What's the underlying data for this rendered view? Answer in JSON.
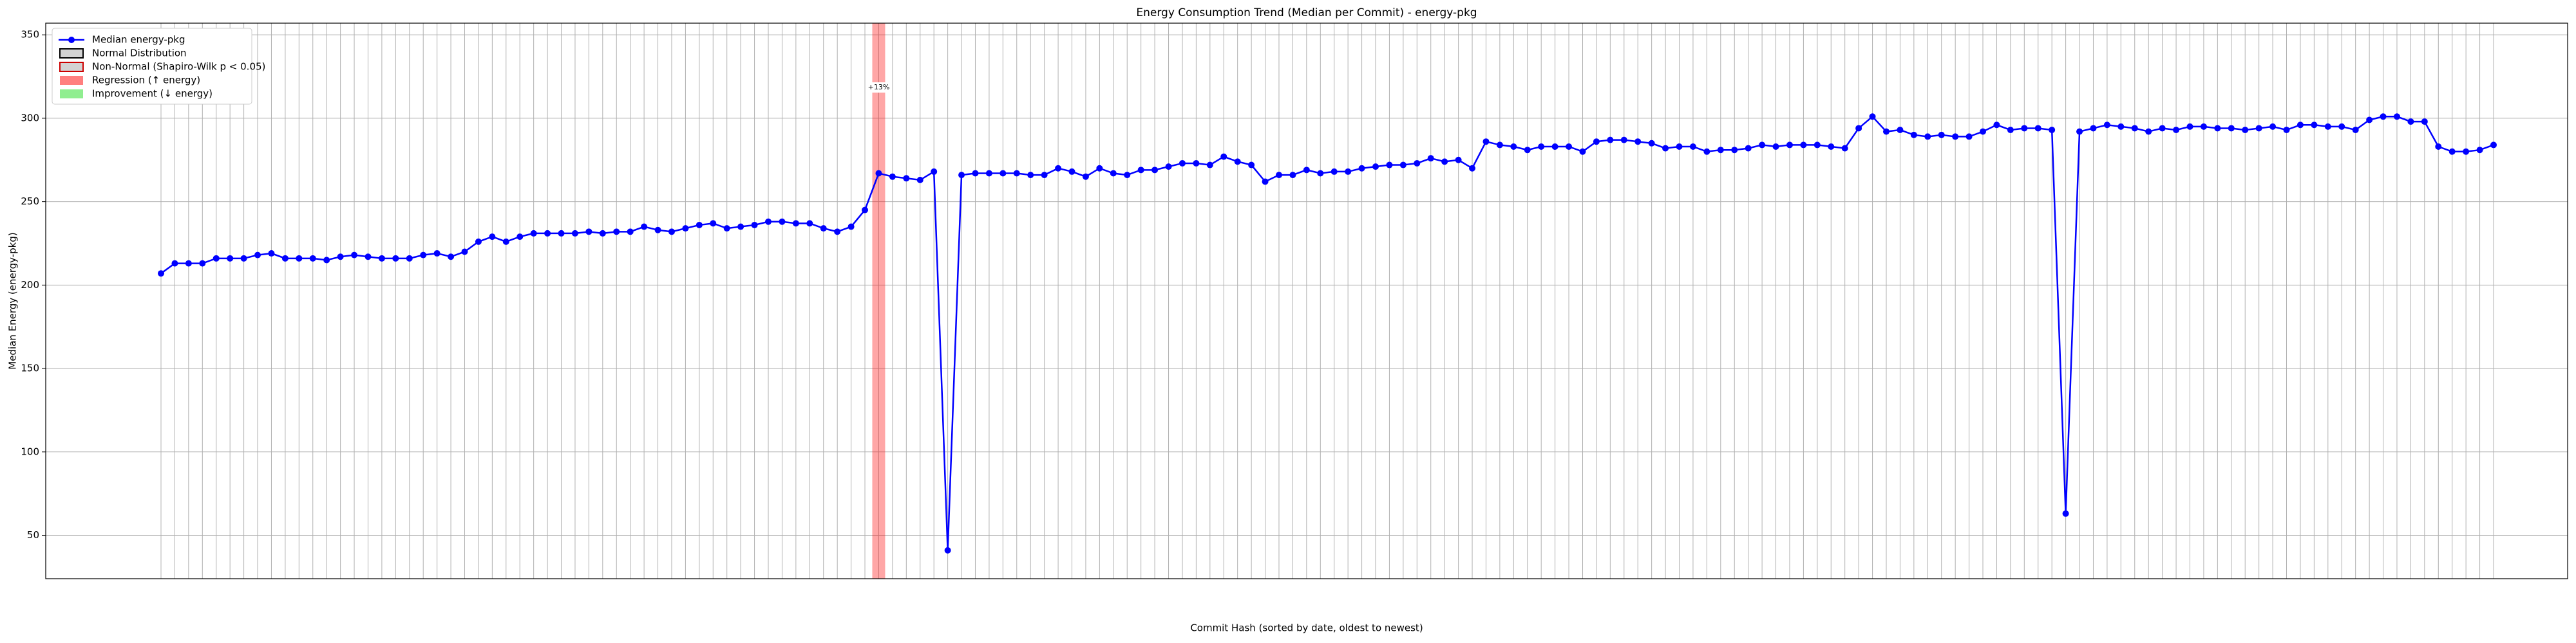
{
  "chart_data": {
    "type": "line",
    "title": "Energy Consumption Trend (Median per Commit) - energy-pkg",
    "xlabel": "Commit Hash (sorted by date, oldest to newest)",
    "ylabel": "Median Energy (energy-pkg)",
    "series": [
      {
        "name": "Median energy-pkg",
        "color": "#0000ff",
        "values": [
          207,
          213,
          213,
          213,
          216,
          216,
          216,
          218,
          219,
          216,
          216,
          216,
          215,
          217,
          218,
          217,
          216,
          216,
          216,
          218,
          219,
          217,
          220,
          226,
          229,
          226,
          229,
          231,
          231,
          231,
          231,
          232,
          231,
          232,
          232,
          235,
          233,
          232,
          234,
          236,
          237,
          234,
          235,
          236,
          238,
          238,
          237,
          237,
          234,
          232,
          235,
          245,
          267,
          265,
          264,
          263,
          268,
          41,
          266,
          267,
          267,
          267,
          267,
          266,
          266,
          270,
          268,
          265,
          270,
          267,
          266,
          269,
          269,
          271,
          273,
          273,
          272,
          277,
          274,
          272,
          262,
          266,
          266,
          269,
          267,
          268,
          268,
          270,
          271,
          272,
          272,
          273,
          276,
          274,
          275,
          270,
          286,
          284,
          283,
          281,
          283,
          283,
          283,
          280,
          286,
          287,
          287,
          286,
          285,
          282,
          283,
          283,
          280,
          281,
          281,
          282,
          284,
          283,
          284,
          284,
          284,
          283,
          282,
          294,
          301,
          292,
          293,
          290,
          289,
          290,
          289,
          289,
          292,
          296,
          293,
          294,
          294,
          293,
          63,
          292,
          294,
          296,
          295,
          294,
          292,
          294,
          293,
          295,
          295,
          294,
          294,
          293,
          294,
          295,
          293,
          296,
          296,
          295,
          295,
          293,
          299,
          301,
          301,
          298,
          298,
          283,
          280,
          280,
          281,
          284
        ]
      }
    ],
    "legend": [
      "Normal Distribution",
      "Non-Normal (Shapiro-Wilk p < 0.05)",
      "Regression (↑ energy)",
      "Improvement (↓ energy)"
    ],
    "legend_position": "upper left",
    "annotations": [
      {
        "text": "+13%",
        "index": 52
      }
    ],
    "ylim": [
      24,
      357
    ],
    "yticks": [
      50,
      100,
      150,
      200,
      250,
      300,
      350
    ],
    "grid": true
  }
}
